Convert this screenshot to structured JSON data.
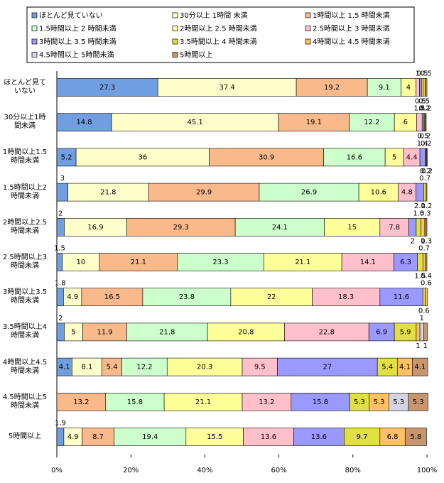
{
  "chart_data": {
    "type": "stacked-bar-horizontal",
    "categories": [
      "ほとんど見ていない",
      "30分以上1時間未満",
      "1時間以上1.5時間未満",
      "1.5時間以上2時間未満",
      "2時間以上2.5時間未満",
      "2.5時間以上3時間未満",
      "3時間以上3.5時間未満",
      "3.5時間以上4時間未満",
      "4時間以上4.5時間未満",
      "4.5時間以上5時間未満",
      "5時間以上"
    ],
    "series": [
      {
        "name": "ほとんど見ていない",
        "color": "#6f9fe0",
        "values": [
          27.3,
          14.8,
          5.2,
          3.0,
          2.0,
          1.5,
          1.8,
          2.0,
          4.1,
          0,
          1.9
        ]
      },
      {
        "name": "30分以上 1時間 未満",
        "color": "#ffffcc",
        "values": [
          37.4,
          45.1,
          36.0,
          21.8,
          16.9,
          10.0,
          4.9,
          5.0,
          8.1,
          0,
          4.9
        ]
      },
      {
        "name": "1時間以上 1.5 時間未満",
        "color": "#f9b98a",
        "values": [
          19.2,
          19.1,
          30.9,
          29.9,
          29.3,
          21.1,
          16.5,
          11.9,
          5.4,
          13.2,
          8.7
        ]
      },
      {
        "name": "1.5時間以上 2 時間未満",
        "color": "#ccffcc",
        "values": [
          9.1,
          12.2,
          16.6,
          26.9,
          24.1,
          23.3,
          23.8,
          21.8,
          12.2,
          15.8,
          19.4
        ]
      },
      {
        "name": "2時間以上 2.5 時間未満",
        "color": "#ffff99",
        "values": [
          4.0,
          6.0,
          5.0,
          10.6,
          15.0,
          21.1,
          22.0,
          20.8,
          20.3,
          21.1,
          15.5
        ]
      },
      {
        "name": "2.5時間以上 3 時間未満",
        "color": "#ffc0cc",
        "values": [
          1.0,
          1.5,
          4.4,
          4.8,
          7.8,
          14.1,
          18.3,
          22.8,
          9.5,
          13.2,
          13.6
        ]
      },
      {
        "name": "3時間以上 3.5 時間未満",
        "color": "#9999ff",
        "values": [
          0.5,
          0.5,
          1.4,
          2.1,
          2.0,
          6.3,
          11.6,
          6.9,
          27.0,
          15.8,
          13.6
        ]
      },
      {
        "name": "3.5時間以上 4 時間未満",
        "color": "#e0e040",
        "values": [
          0.5,
          0.2,
          0.2,
          0.7,
          1.3,
          1.5,
          0.6,
          5.9,
          5.4,
          5.3,
          9.7
        ]
      },
      {
        "name": "4時間以上 4.5 時間未満",
        "color": "#ffc060",
        "values": [
          0.5,
          0.2,
          0.2,
          0.2,
          1.0,
          0.7,
          0.6,
          1.0,
          4.1,
          5.3,
          6.8
        ]
      },
      {
        "name": "4.5時間以上 5時間未満",
        "color": "#d4d4e4",
        "values": [
          0,
          0,
          0,
          0,
          0.3,
          0,
          0,
          1.0,
          0,
          5.3,
          0
        ]
      },
      {
        "name": "5時間以上",
        "color": "#c8966e",
        "values": [
          0.5,
          0.2,
          0.2,
          0,
          0.3,
          0.4,
          0,
          1.0,
          4.1,
          5.3,
          5.8
        ]
      }
    ],
    "xlim": [
      0,
      100
    ],
    "xticks": [
      {
        "value": 0,
        "label": "0%"
      },
      {
        "value": 20,
        "label": "20%"
      },
      {
        "value": 40,
        "label": "40%"
      },
      {
        "value": 60,
        "label": "60%"
      },
      {
        "value": 80,
        "label": "80%"
      },
      {
        "value": 100,
        "label": "100%"
      }
    ]
  }
}
